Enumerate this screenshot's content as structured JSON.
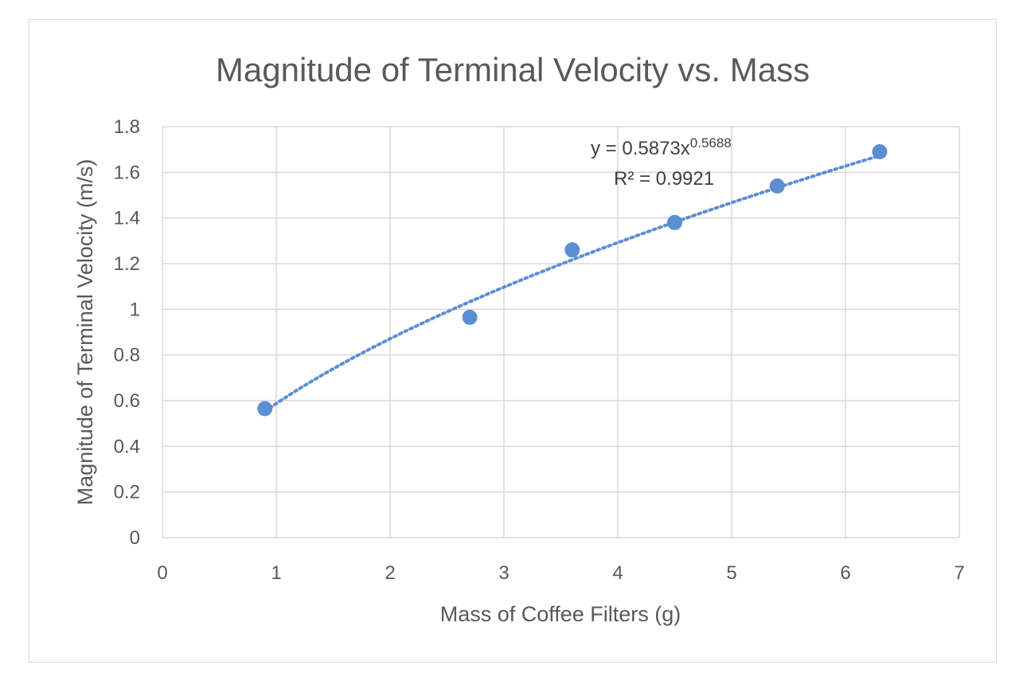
{
  "chart_data": {
    "type": "scatter",
    "title": "Magnitude of Terminal Velocity vs. Mass",
    "xlabel": "Mass of Coffee Filters (g)",
    "ylabel": "Magnitude of Terminal Velocity (m/s)",
    "xlim": [
      0,
      7
    ],
    "ylim": [
      0,
      1.8
    ],
    "x_ticks": [
      "0",
      "1",
      "2",
      "3",
      "4",
      "5",
      "6",
      "7"
    ],
    "y_ticks": [
      "0",
      "0.2",
      "0.4",
      "0.6",
      "0.8",
      "1",
      "1.2",
      "1.4",
      "1.6",
      "1.8"
    ],
    "grid": true,
    "series": [
      {
        "x": [
          0.9,
          2.7,
          3.6,
          4.5,
          5.4,
          6.3
        ],
        "y": [
          0.565,
          0.965,
          1.26,
          1.38,
          1.54,
          1.69
        ],
        "color": "#5b8fd1"
      }
    ],
    "trendline": {
      "type": "power",
      "coefficient": 0.5873,
      "exponent": 0.5688,
      "equation_prefix": "y = 0.5873x",
      "equation_exponent": "0.5688",
      "r_squared_label": "R² = 0.9921",
      "style": "dotted",
      "color": "#5b8fd1"
    },
    "colors": {
      "gridline": "#d9d9d9",
      "text": "#595959",
      "point": "#5b8fd1"
    }
  }
}
